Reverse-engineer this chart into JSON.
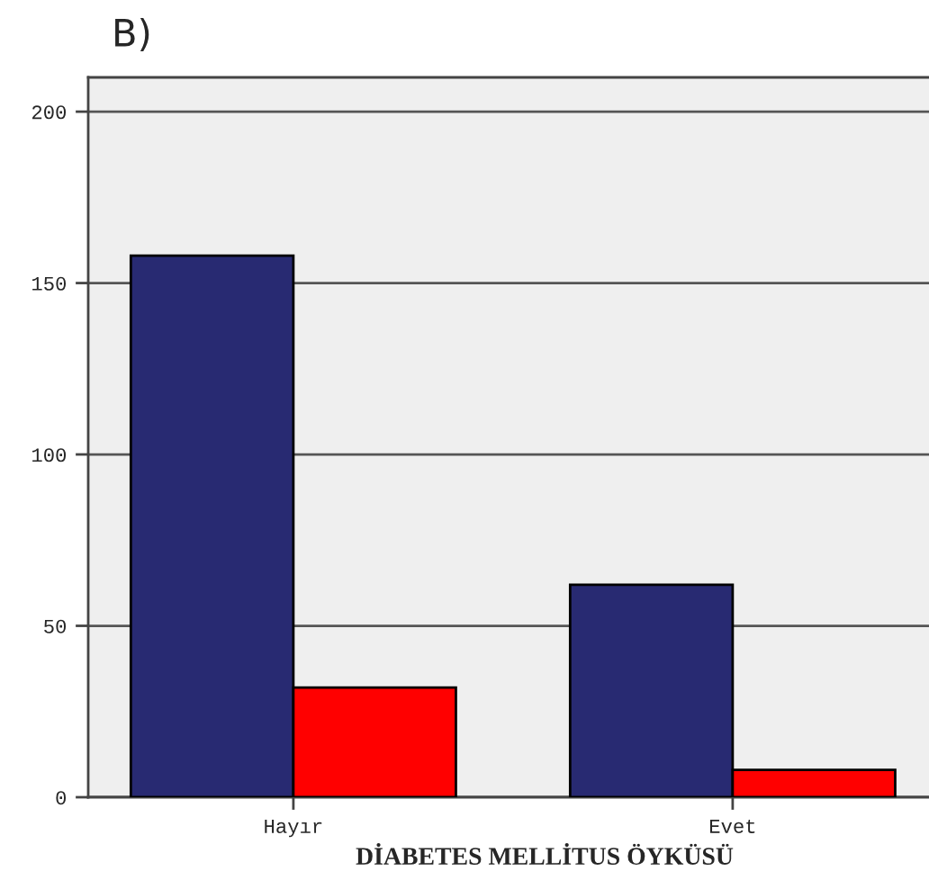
{
  "chart_data": {
    "type": "bar",
    "title": "B)",
    "xlabel": "DİABETES MELLİTUS ÖYKÜSÜ",
    "categories": [
      "Hayır",
      "Evet"
    ],
    "series": [
      {
        "color": "#282a72",
        "values": [
          158,
          62
        ]
      },
      {
        "color": "#ff0000",
        "values": [
          32,
          8
        ]
      }
    ],
    "ylim": [
      0,
      210
    ],
    "yticks": [
      0,
      50,
      100,
      150,
      200
    ],
    "grid": "y",
    "legend": false
  }
}
